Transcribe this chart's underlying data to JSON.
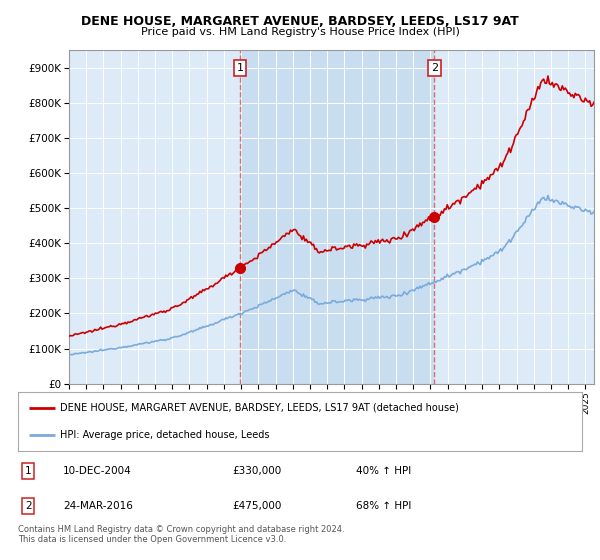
{
  "title": "DENE HOUSE, MARGARET AVENUE, BARDSEY, LEEDS, LS17 9AT",
  "subtitle": "Price paid vs. HM Land Registry's House Price Index (HPI)",
  "ylim": [
    0,
    950000
  ],
  "yticks": [
    0,
    100000,
    200000,
    300000,
    400000,
    500000,
    600000,
    700000,
    800000,
    900000
  ],
  "ytick_labels": [
    "£0",
    "£100K",
    "£200K",
    "£300K",
    "£400K",
    "£500K",
    "£600K",
    "£700K",
    "£800K",
    "£900K"
  ],
  "hpi_color": "#7aabdb",
  "house_color": "#cc0000",
  "vline_color": "#d47070",
  "bg_color": "#ddeaf7",
  "shade_color": "#c8ddf0",
  "sale1_x": 2004.94,
  "sale1_y": 330000,
  "sale2_x": 2016.23,
  "sale2_y": 475000,
  "legend_house": "DENE HOUSE, MARGARET AVENUE, BARDSEY, LEEDS, LS17 9AT (detached house)",
  "legend_hpi": "HPI: Average price, detached house, Leeds",
  "table_row1": [
    "1",
    "10-DEC-2004",
    "£330,000",
    "40% ↑ HPI"
  ],
  "table_row2": [
    "2",
    "24-MAR-2016",
    "£475,000",
    "68% ↑ HPI"
  ],
  "footer": "Contains HM Land Registry data © Crown copyright and database right 2024.\nThis data is licensed under the Open Government Licence v3.0.",
  "xmin": 1995.0,
  "xmax": 2025.5
}
